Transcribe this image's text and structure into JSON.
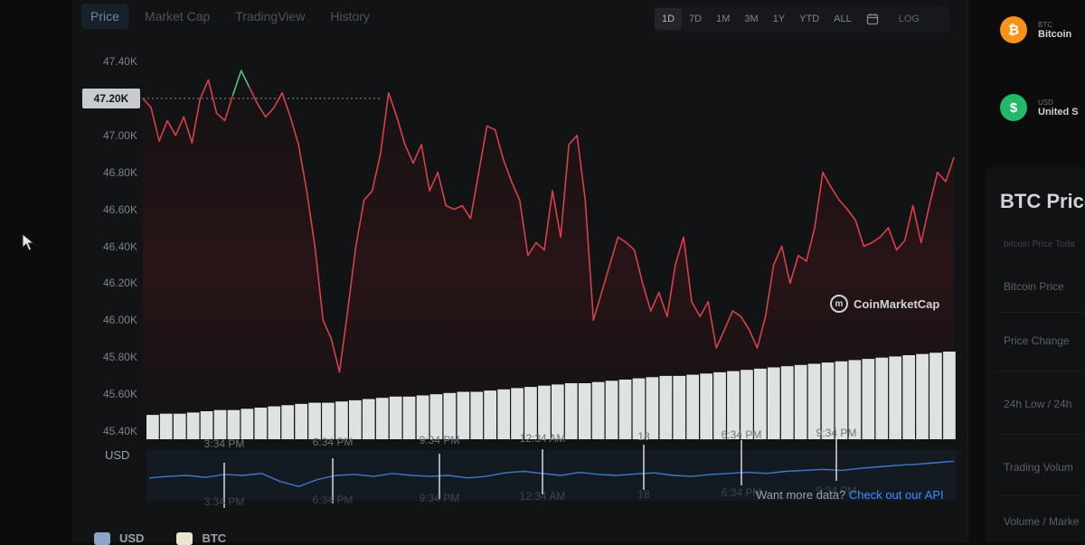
{
  "tabs": [
    {
      "label": "Price",
      "active": true
    },
    {
      "label": "Market Cap",
      "active": false
    },
    {
      "label": "TradingView",
      "active": false
    },
    {
      "label": "History",
      "active": false
    }
  ],
  "ranges": {
    "items": [
      {
        "label": "1D",
        "active": true
      },
      {
        "label": "7D",
        "active": false
      },
      {
        "label": "1M",
        "active": false
      },
      {
        "label": "3M",
        "active": false
      },
      {
        "label": "1Y",
        "active": false
      },
      {
        "label": "YTD",
        "active": false
      },
      {
        "label": "ALL",
        "active": false
      }
    ],
    "calendar_icon": "calendar-icon",
    "log_label": "LOG"
  },
  "current_price_tag": "47.20K",
  "currency_label": "USD",
  "chart_data": {
    "type": "line",
    "y_ticks": [
      "47.40K",
      "47.20K",
      "47.00K",
      "46.80K",
      "46.60K",
      "46.40K",
      "46.20K",
      "46.00K",
      "45.80K",
      "45.60K",
      "45.40K"
    ],
    "ylim": [
      45400,
      47400
    ],
    "x_ticks": [
      "3:34 PM",
      "6:34 PM",
      "9:34 PM",
      "12:34 AM",
      "18",
      "6:34 PM",
      "9:34 PM"
    ],
    "reference_price": 47200,
    "series": [
      {
        "color_up": "#4fc47a",
        "color_down": "#d9404a",
        "values": [
          47200,
          47150,
          46970,
          47080,
          47000,
          47100,
          46960,
          47200,
          47300,
          47120,
          47080,
          47220,
          47350,
          47260,
          47170,
          47100,
          47150,
          47230,
          47100,
          46950,
          46700,
          46400,
          46000,
          45900,
          45720,
          46050,
          46400,
          46650,
          46700,
          46900,
          47230,
          47100,
          46950,
          46850,
          46950,
          46700,
          46800,
          46620,
          46600,
          46620,
          46550,
          46800,
          47050,
          47030,
          46870,
          46750,
          46650,
          46350,
          46420,
          46380,
          46700,
          46450,
          46950,
          47000,
          46650,
          46000,
          46150,
          46300,
          46450,
          46420,
          46380,
          46200,
          46050,
          46150,
          46020,
          46300,
          46450,
          46100,
          46020,
          46100,
          45850,
          45950,
          46050,
          46020,
          45950,
          45850,
          46020,
          46300,
          46400,
          46200,
          46350,
          46320,
          46500,
          46800,
          46720,
          46650,
          46600,
          46540,
          46400,
          46420,
          46450,
          46500,
          46380,
          46430,
          46620,
          46420,
          46620,
          46800,
          46750,
          46880
        ]
      }
    ],
    "volume_values": [
      20,
      21,
      21,
      22,
      23,
      24,
      24,
      25,
      26,
      27,
      28,
      29,
      30,
      30,
      31,
      32,
      33,
      34,
      35,
      35,
      36,
      37,
      38,
      39,
      39,
      40,
      41,
      42,
      43,
      44,
      45,
      46,
      46,
      47,
      48,
      49,
      50,
      51,
      52,
      52,
      53,
      54,
      55,
      56,
      57,
      58,
      59,
      60,
      61,
      62,
      63,
      64,
      65,
      66,
      67,
      68,
      69,
      70,
      71,
      72
    ],
    "overview_x_ticks": [
      "3:34 PM",
      "6:34 PM",
      "9:34 PM",
      "12:34 AM",
      "18",
      "6:34 PM",
      "9:34 PM"
    ],
    "overview_values": [
      0.55,
      0.52,
      0.5,
      0.54,
      0.48,
      0.5,
      0.46,
      0.62,
      0.72,
      0.58,
      0.5,
      0.48,
      0.52,
      0.46,
      0.5,
      0.52,
      0.5,
      0.55,
      0.52,
      0.45,
      0.42,
      0.46,
      0.5,
      0.44,
      0.48,
      0.5,
      0.47,
      0.45,
      0.5,
      0.52,
      0.48,
      0.46,
      0.44,
      0.46,
      0.42,
      0.4,
      0.38,
      0.4,
      0.36,
      0.33,
      0.3,
      0.28,
      0.25,
      0.22
    ]
  },
  "watermark": {
    "text": "CoinMarketCap"
  },
  "api_prompt": {
    "text": "Want more data?",
    "link": "Check out our API"
  },
  "legend": [
    {
      "label": "USD",
      "color": "#8fa3c4"
    },
    {
      "label": "BTC",
      "color": "#e9e4cf"
    }
  ],
  "sidebar": {
    "coins": [
      {
        "symbol": "BTC",
        "name": "Bitcoin",
        "icon": "bitcoin-icon",
        "color": "#f7931a",
        "glyph": "₿"
      },
      {
        "symbol": "USD",
        "name": "United S",
        "icon": "dollar-icon",
        "color": "#22b96a",
        "glyph": "$"
      }
    ],
    "title": "BTC Price",
    "subtitle": "bitcoin Price Toda",
    "stats": [
      "Bitcoin Price",
      "Price Change",
      "24h Low / 24h",
      "Trading Volum",
      "Volume / Marke"
    ]
  }
}
